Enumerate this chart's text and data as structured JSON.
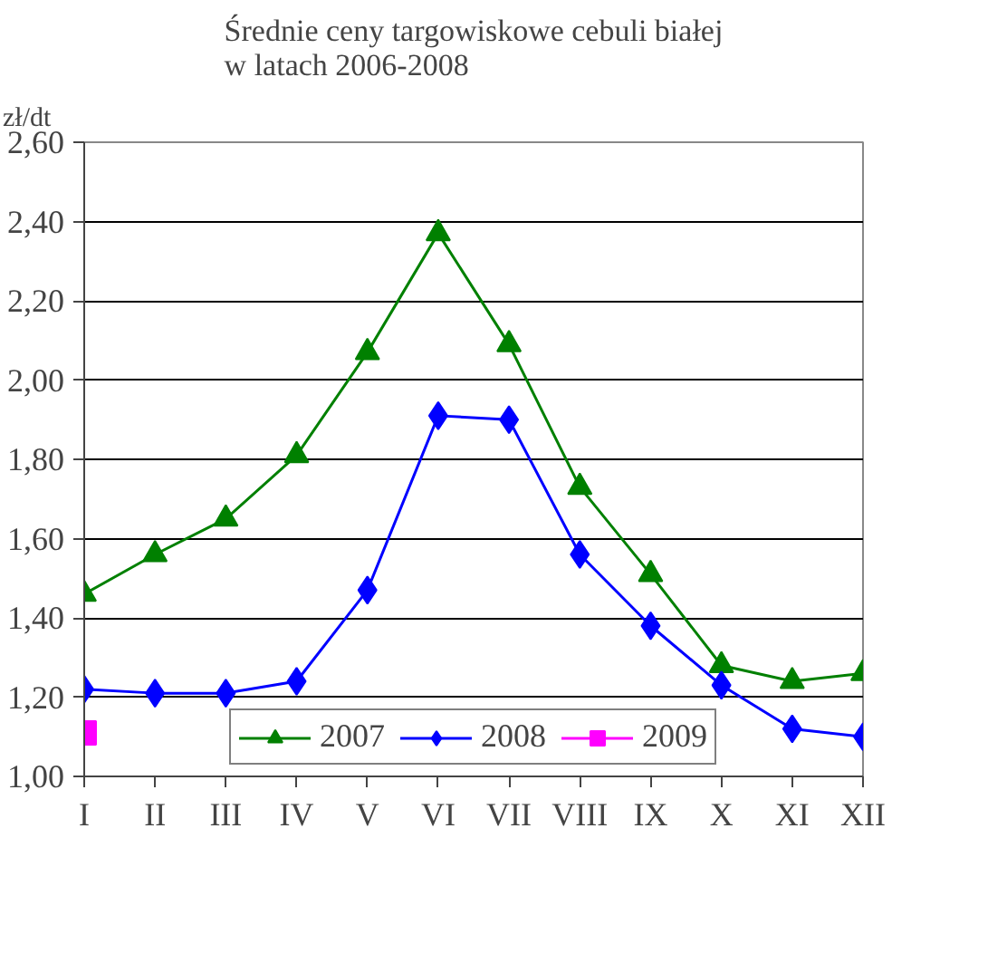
{
  "chart_data": {
    "type": "line",
    "title": "Średnie ceny targowiskowe cebuli białej\nw latach 2006-2008",
    "ylabel": "zł/dt",
    "categories": [
      "I",
      "II",
      "III",
      "IV",
      "V",
      "VI",
      "VII",
      "VIII",
      "IX",
      "X",
      "XI",
      "XII"
    ],
    "series": [
      {
        "name": "2007",
        "color": "#008000",
        "marker": "triangle",
        "values": [
          1.46,
          1.56,
          1.65,
          1.81,
          2.07,
          2.37,
          2.09,
          1.73,
          1.51,
          1.28,
          1.24,
          1.26
        ]
      },
      {
        "name": "2008",
        "color": "#0000ff",
        "marker": "diamond",
        "values": [
          1.22,
          1.21,
          1.21,
          1.24,
          1.47,
          1.91,
          1.9,
          1.56,
          1.38,
          1.23,
          1.12,
          1.1
        ]
      },
      {
        "name": "2009",
        "color": "#ff00ff",
        "marker": "square",
        "values": [
          1.11,
          null,
          null,
          null,
          null,
          null,
          null,
          null,
          null,
          null,
          null,
          null
        ]
      }
    ],
    "ylim": [
      1.0,
      2.6
    ],
    "yticks": [
      {
        "value": 1.0,
        "label": "1,00"
      },
      {
        "value": 1.2,
        "label": "1,20"
      },
      {
        "value": 1.4,
        "label": "1,40"
      },
      {
        "value": 1.6,
        "label": "1,60"
      },
      {
        "value": 1.8,
        "label": "1,80"
      },
      {
        "value": 2.0,
        "label": "2,00"
      },
      {
        "value": 2.2,
        "label": "2,20"
      },
      {
        "value": 2.4,
        "label": "2,40"
      },
      {
        "value": 2.6,
        "label": "2,60"
      }
    ],
    "grid": "y",
    "legend": "bottom",
    "line_style": "solid"
  }
}
